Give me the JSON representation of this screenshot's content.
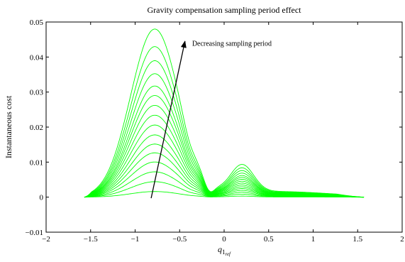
{
  "chart_data": {
    "type": "line",
    "title": "Gravity compensation sampling period effect",
    "xlabel_main": "q",
    "xlabel_sub": "1",
    "xlabel_subsub": "ref",
    "ylabel": "Instantaneous cost",
    "xlim": [
      -2,
      2
    ],
    "ylim": [
      -0.01,
      0.05
    ],
    "xticks": [
      {
        "value": -2,
        "label": "−2"
      },
      {
        "value": -1.5,
        "label": "−1.5"
      },
      {
        "value": -1,
        "label": "−1"
      },
      {
        "value": -0.5,
        "label": "−0.5"
      },
      {
        "value": 0,
        "label": "0"
      },
      {
        "value": 0.5,
        "label": "0.5"
      },
      {
        "value": 1,
        "label": "1"
      },
      {
        "value": 1.5,
        "label": "1.5"
      },
      {
        "value": 2,
        "label": "2"
      }
    ],
    "yticks": [
      {
        "value": -0.01,
        "label": "−0.01"
      },
      {
        "value": 0,
        "label": "0"
      },
      {
        "value": 0.01,
        "label": "0.01"
      },
      {
        "value": 0.02,
        "label": "0.02"
      },
      {
        "value": 0.03,
        "label": "0.03"
      },
      {
        "value": 0.04,
        "label": "0.04"
      },
      {
        "value": 0.05,
        "label": "0.05"
      }
    ],
    "grid": false,
    "legend": "none",
    "line_color": "#00ff00",
    "x_range": [
      -1.57,
      1.57
    ],
    "curve_peaks": [
      0.0016,
      0.0044,
      0.0072,
      0.01,
      0.0126,
      0.0151,
      0.0177,
      0.0205,
      0.0233,
      0.0261,
      0.0289,
      0.0316,
      0.0351,
      0.0388,
      0.0428,
      0.0478
    ],
    "annotation": {
      "text": "Decreasing sampling period",
      "arrow_from": [
        -0.82,
        -0.0003
      ],
      "arrow_to": [
        -0.44,
        0.0445
      ],
      "text_at": [
        -0.36,
        0.0432
      ]
    }
  }
}
